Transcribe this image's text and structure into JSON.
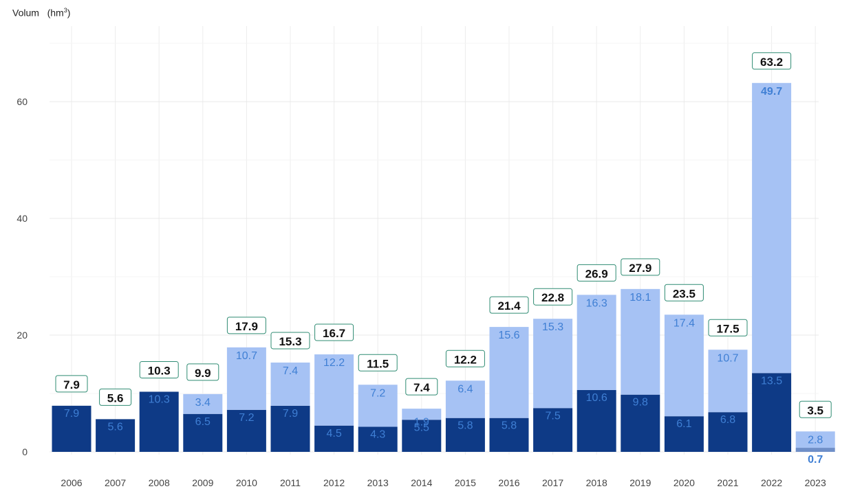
{
  "chart_data": {
    "type": "bar",
    "stacked": true,
    "ylabel": "Volum",
    "ylabel_unit": "(hm",
    "ylabel_unit_sup": "3",
    "ylabel_unit_close": ")",
    "ylim": [
      0,
      70
    ],
    "yticks": [
      0,
      20,
      40,
      60
    ],
    "grid": true,
    "categories": [
      "2006",
      "2007",
      "2008",
      "2009",
      "2010",
      "2011",
      "2012",
      "2013",
      "2014",
      "2015",
      "2016",
      "2017",
      "2018",
      "2019",
      "2020",
      "2021",
      "2022",
      "2023"
    ],
    "series": [
      {
        "values": [
          7.9,
          5.6,
          10.3,
          6.5,
          7.2,
          7.9,
          4.5,
          4.3,
          5.5,
          5.8,
          5.8,
          7.5,
          10.6,
          9.8,
          6.1,
          6.8,
          13.5,
          0.7
        ],
        "color": "#0e3a86"
      },
      {
        "values": [
          0,
          0,
          0,
          3.4,
          10.7,
          7.4,
          12.2,
          7.2,
          1.9,
          6.4,
          15.6,
          15.3,
          16.3,
          18.1,
          17.4,
          10.7,
          49.7,
          2.8
        ],
        "color": "#a6c2f4"
      }
    ],
    "totals": [
      7.9,
      5.6,
      10.3,
      9.9,
      17.9,
      15.3,
      16.7,
      11.5,
      7.4,
      12.2,
      21.4,
      22.8,
      26.9,
      27.9,
      23.5,
      17.5,
      63.2,
      3.5
    ],
    "label_colors": {
      "bottom": "#3f7fd4",
      "top": "#3f7fd4",
      "total": "#111111",
      "total_border": "#2e8b72"
    }
  }
}
